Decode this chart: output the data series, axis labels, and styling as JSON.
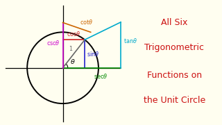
{
  "bg_color": "#fffef0",
  "circle_color": "#000000",
  "circle_lw": 1.4,
  "axes_color": "#000000",
  "theta_deg": 52,
  "colors": {
    "sin": "#2222cc",
    "cos": "#cc2222",
    "tan": "#00aacc",
    "csc": "#cc00cc",
    "sec": "#008800",
    "cot": "#cc6600",
    "radius": "#666666",
    "angle": "#000000"
  },
  "title_lines": [
    "All Six",
    "Trigonometric",
    "Functions on",
    "the Unit Circle"
  ],
  "title_color": "#cc1111",
  "title_fontsize": 9.0,
  "label_fontsize": 5.8
}
